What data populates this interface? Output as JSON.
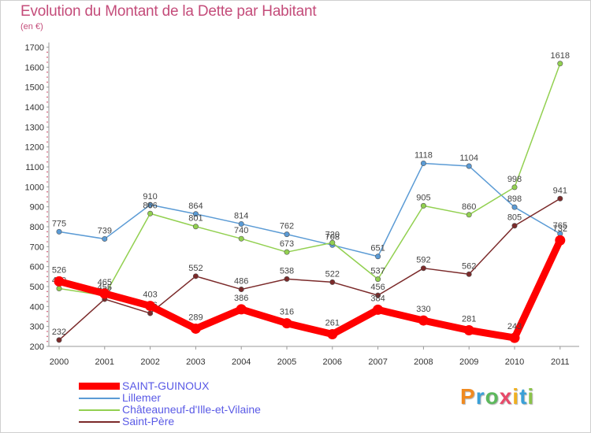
{
  "header": {
    "title": "Evolution du Montant de la Dette par Habitant",
    "subtitle": "(en €)"
  },
  "logo": {
    "letters": [
      "P",
      "r",
      "o",
      "x",
      "i",
      "t",
      "i"
    ]
  },
  "chart_data": {
    "type": "line",
    "title": "Evolution du Montant de la Dette par Habitant",
    "subtitle": "(en €)",
    "x": [
      "2000",
      "2001",
      "2002",
      "2003",
      "2004",
      "2005",
      "2006",
      "2007",
      "2008",
      "2009",
      "2010",
      "2011"
    ],
    "ylim": [
      200,
      1700
    ],
    "yticks": [
      200,
      300,
      400,
      500,
      600,
      700,
      800,
      900,
      1000,
      1100,
      1200,
      1300,
      1400,
      1500,
      1600,
      1700
    ],
    "grid": false,
    "legend_position": "bottom-left",
    "series": [
      {
        "name": "Lillemer",
        "color": "#5b9bd5",
        "values": [
          775,
          739,
          910,
          864,
          814,
          762,
          708,
          651,
          1118,
          1104,
          898,
          765
        ]
      },
      {
        "name": "Châteauneuf-d'Ille-et-Vilaine",
        "color": "#92d050",
        "values": [
          490,
          455,
          866,
          801,
          740,
          673,
          720,
          537,
          905,
          860,
          998,
          1618
        ]
      },
      {
        "name": "Saint-Père",
        "color": "#7b2a2a",
        "values": [
          232,
          437,
          366,
          552,
          486,
          538,
          522,
          456,
          592,
          562,
          805,
          941
        ]
      },
      {
        "name": "SAINT-GUINOUX",
        "color": "#ff0000",
        "values": [
          526,
          465,
          403,
          289,
          386,
          316,
          261,
          384,
          330,
          281,
          243,
          732
        ]
      }
    ]
  }
}
